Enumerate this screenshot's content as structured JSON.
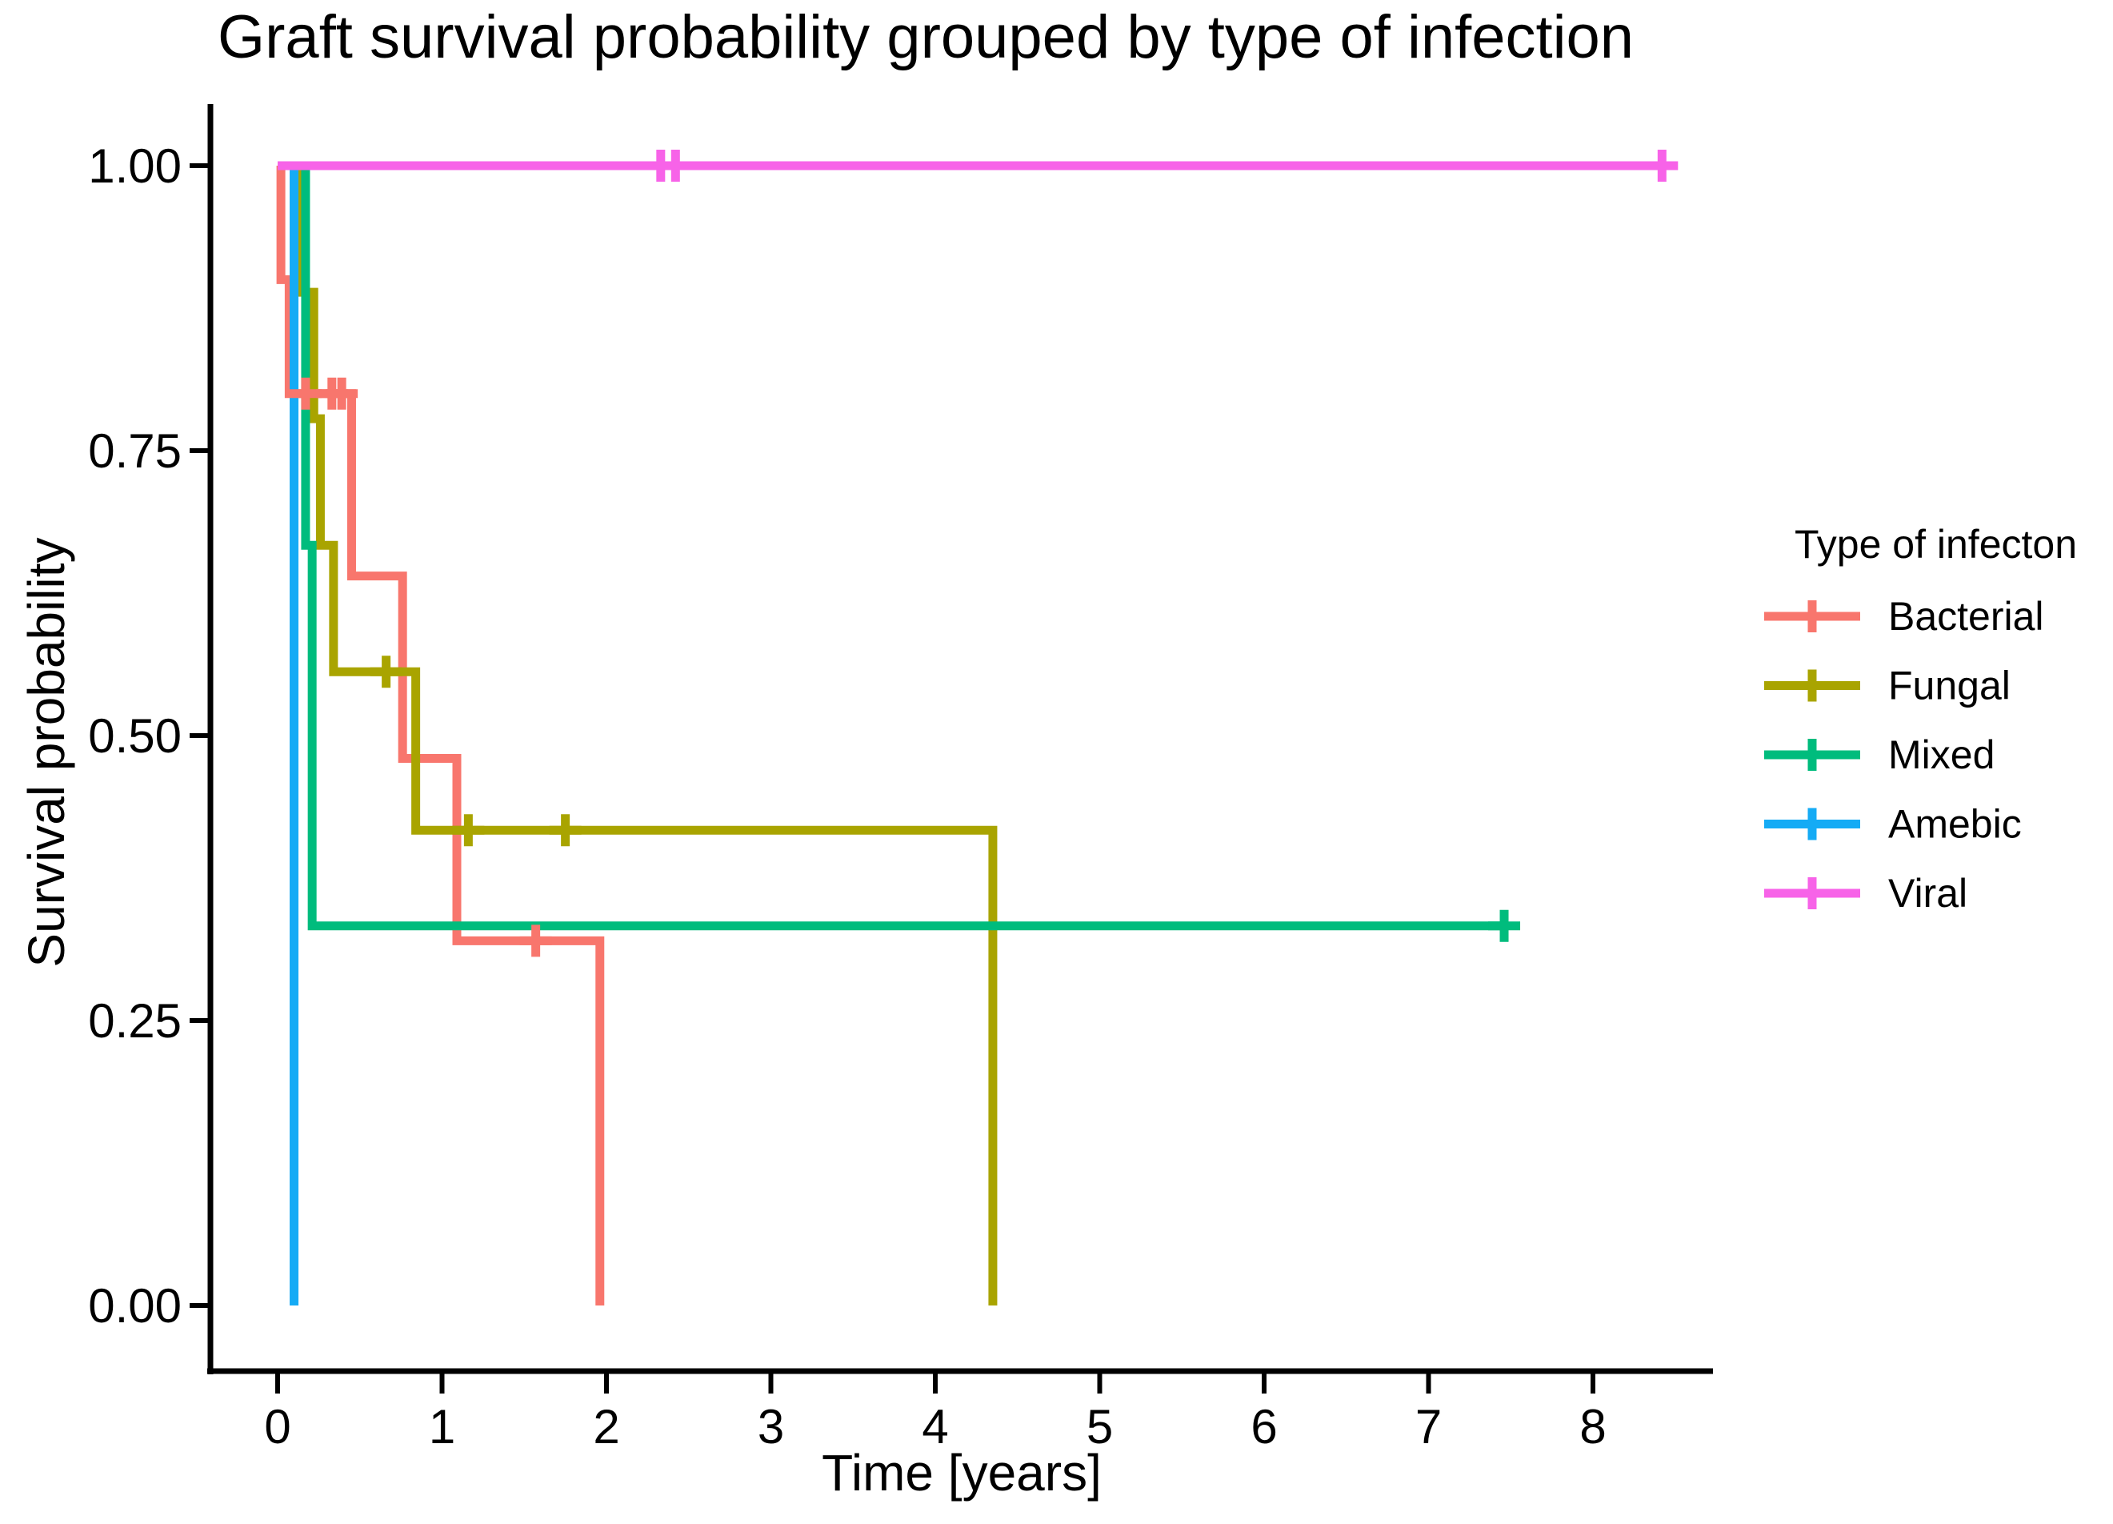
{
  "title": "Graft survival probability grouped by type of infection",
  "x_axis": {
    "label": "Time [years]",
    "tick_labels": [
      "0",
      "1",
      "2",
      "3",
      "4",
      "5",
      "6",
      "7",
      "8"
    ]
  },
  "y_axis": {
    "label": "Survival probability",
    "tick_labels": [
      "0.00",
      "0.25",
      "0.50",
      "0.75",
      "1.00"
    ]
  },
  "legend": {
    "title": "Type of infecton",
    "entries": [
      "Bacterial",
      "Fungal",
      "Mixed",
      "Amebic",
      "Viral"
    ]
  },
  "chart_data": {
    "type": "line",
    "subtype": "kaplan-meier-step-curves",
    "title": "Graft survival probability grouped by type of infection",
    "xlabel": "Time [years]",
    "ylabel": "Survival probability",
    "xlim": [
      -0.41,
      8.73
    ],
    "ylim": [
      -0.06,
      1.05
    ],
    "grid": false,
    "legend_position": "right",
    "censor_symbol": "+",
    "x_ticks": [
      0,
      1,
      2,
      3,
      4,
      5,
      6,
      7,
      8
    ],
    "y_ticks": [
      {
        "v": 0.0,
        "label": "0.00"
      },
      {
        "v": 0.25,
        "label": "0.25"
      },
      {
        "v": 0.5,
        "label": "0.50"
      },
      {
        "v": 0.75,
        "label": "0.75"
      },
      {
        "v": 1.0,
        "label": "1.00"
      }
    ],
    "series": [
      {
        "name": "Bacterial",
        "color": "#F8766D",
        "steps": [
          [
            0,
            1.0
          ],
          [
            0.02,
            0.9
          ],
          [
            0.07,
            0.8
          ],
          [
            0.45,
            0.64
          ],
          [
            0.76,
            0.48
          ],
          [
            1.09,
            0.32
          ],
          [
            1.96,
            0.0
          ]
        ],
        "end": 1.96,
        "censors": [
          [
            0.17,
            0.8
          ],
          [
            0.33,
            0.8
          ],
          [
            0.39,
            0.8
          ],
          [
            1.57,
            0.32
          ]
        ]
      },
      {
        "name": "Fungal",
        "color": "#A9A400",
        "steps": [
          [
            0,
            1.0
          ],
          [
            0.14,
            0.889
          ],
          [
            0.22,
            0.778
          ],
          [
            0.26,
            0.667
          ],
          [
            0.34,
            0.556
          ],
          [
            0.84,
            0.417
          ],
          [
            4.35,
            0.0
          ]
        ],
        "end": 4.35,
        "censors": [
          [
            0.66,
            0.556
          ],
          [
            1.16,
            0.417
          ],
          [
            1.75,
            0.417
          ]
        ]
      },
      {
        "name": "Mixed",
        "color": "#00BC7D",
        "steps": [
          [
            0,
            1.0
          ],
          [
            0.17,
            0.667
          ],
          [
            0.21,
            0.333
          ]
        ],
        "end": 7.46,
        "censors": [
          [
            7.46,
            0.333
          ]
        ]
      },
      {
        "name": "Amebic",
        "color": "#15ABF5",
        "steps": [
          [
            0,
            1.0
          ],
          [
            0.1,
            0.0
          ]
        ],
        "end": 0.1,
        "censors": []
      },
      {
        "name": "Viral",
        "color": "#F763E8",
        "steps": [
          [
            0,
            1.0
          ]
        ],
        "end": 8.42,
        "censors": [
          [
            2.33,
            1.0
          ],
          [
            2.42,
            1.0
          ],
          [
            8.42,
            1.0
          ]
        ]
      }
    ]
  }
}
